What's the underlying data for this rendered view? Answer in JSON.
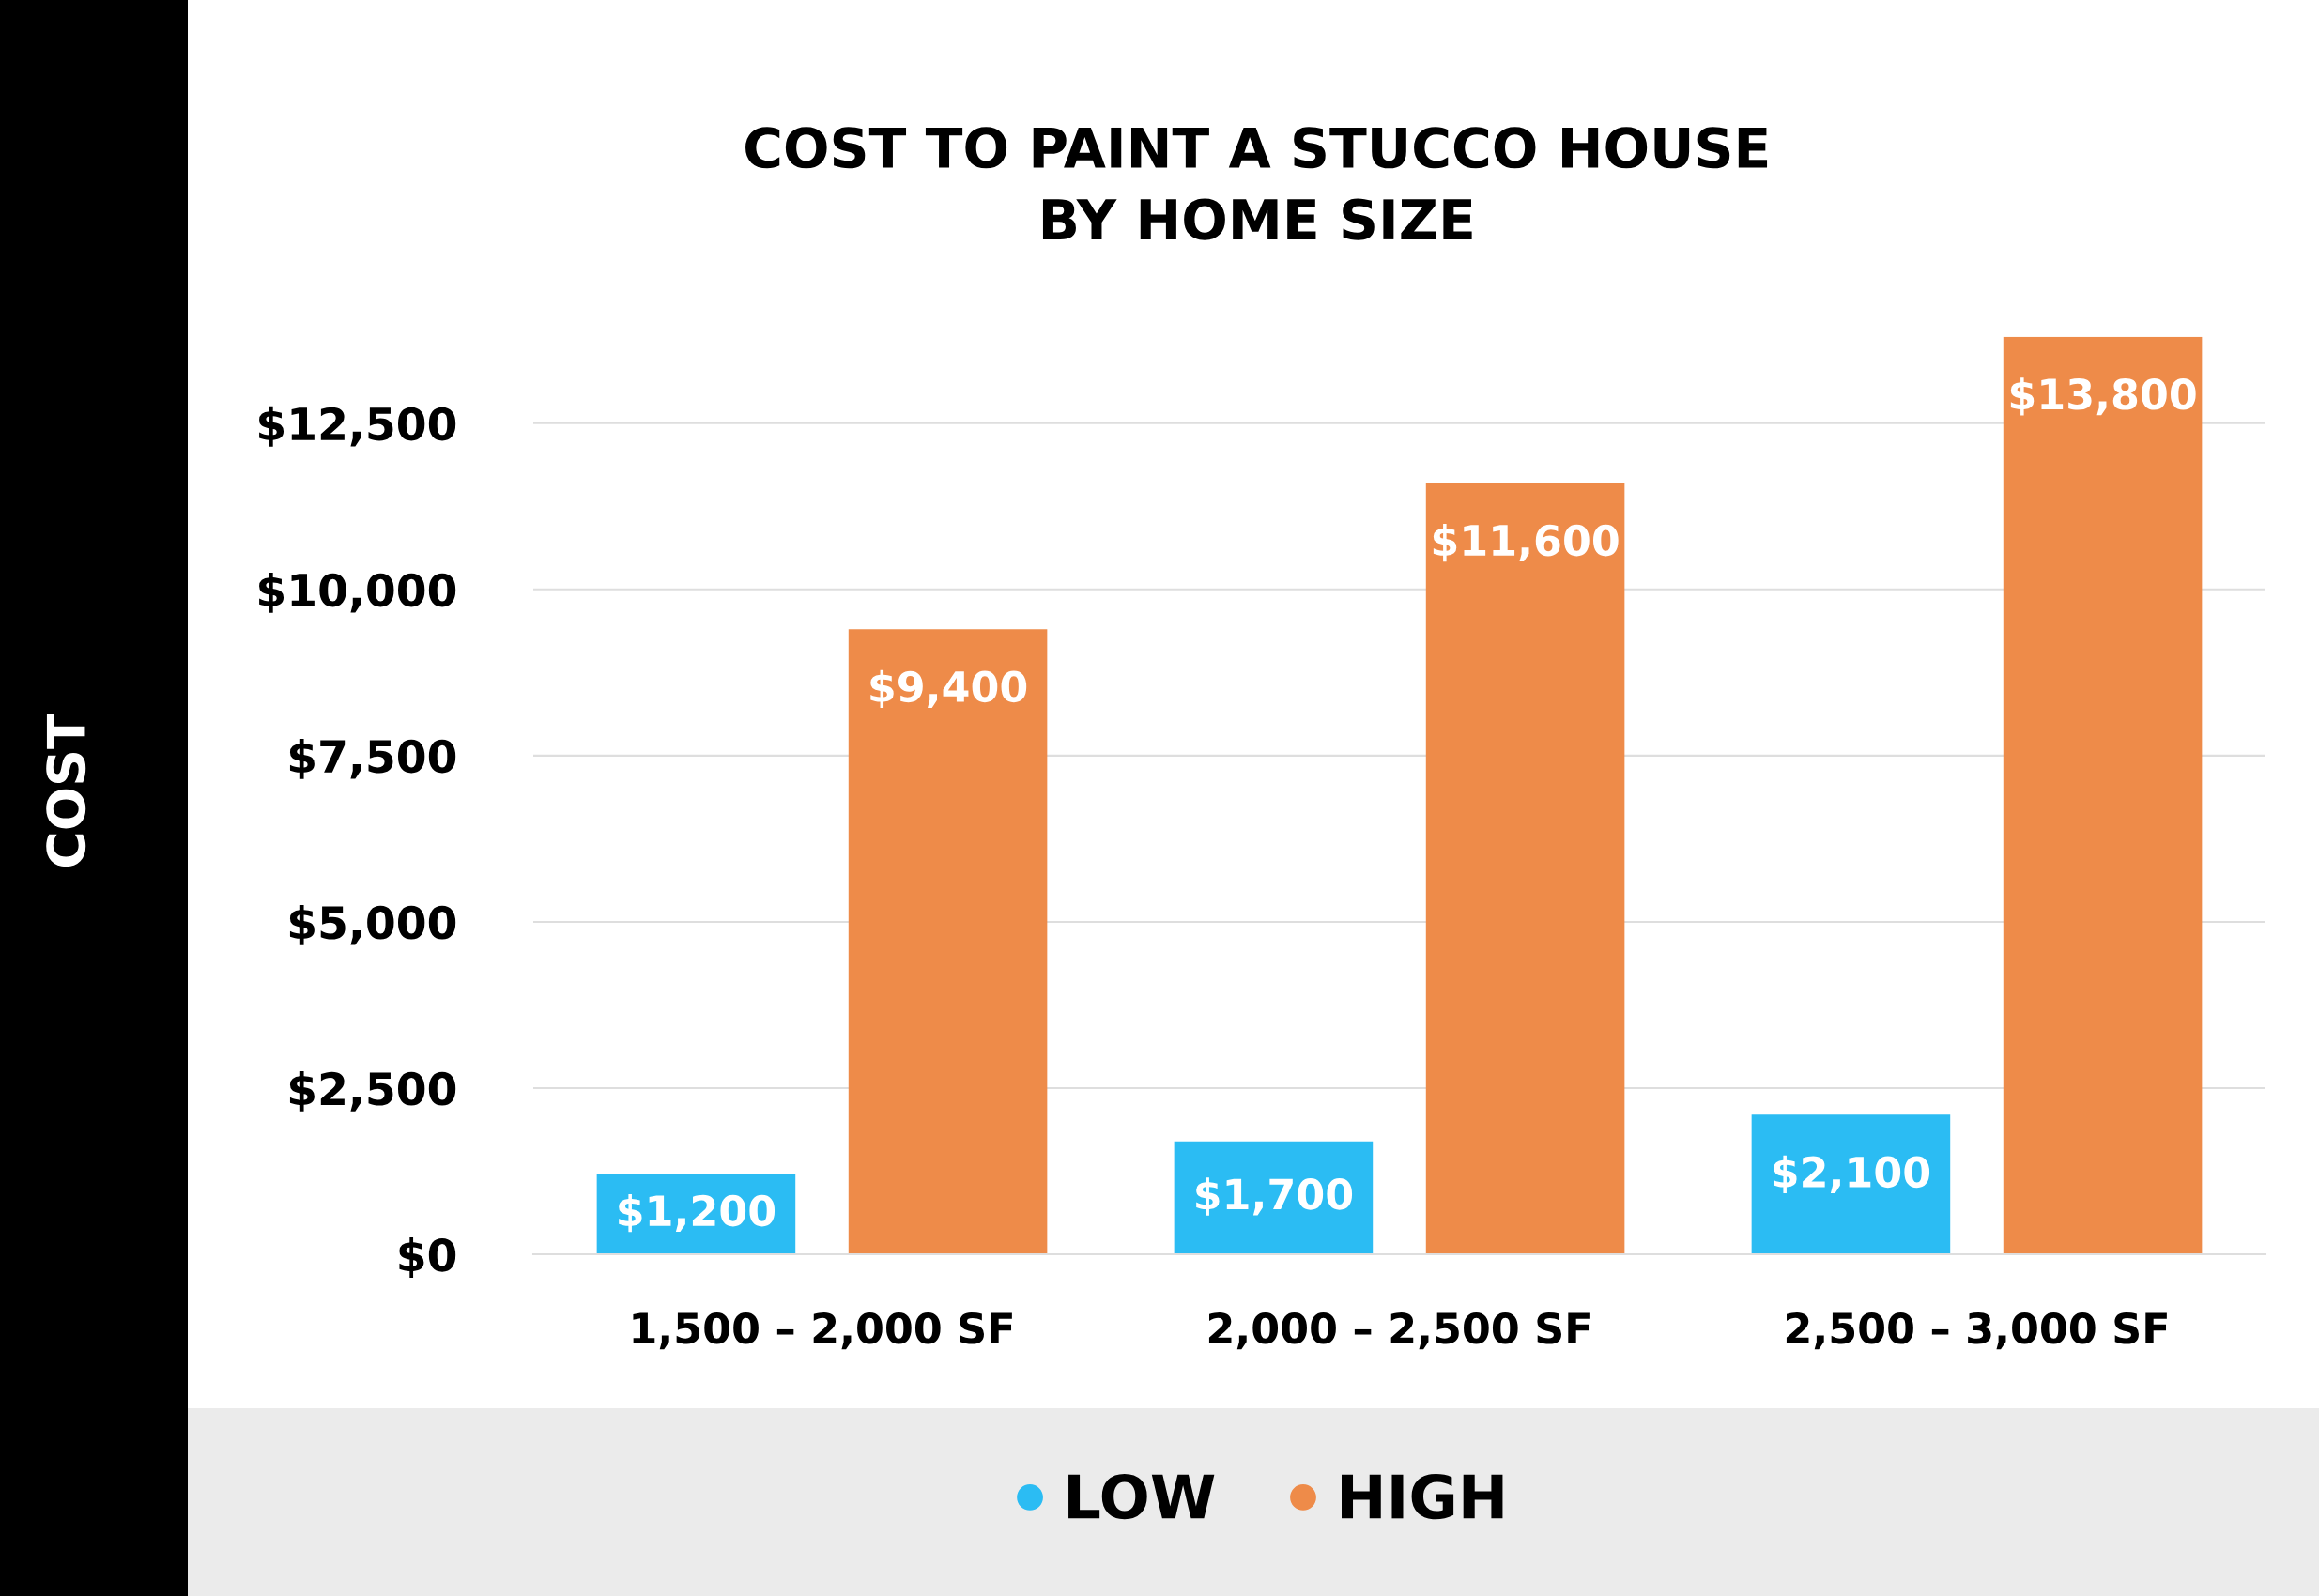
{
  "chart_data": {
    "type": "bar",
    "title": "COST TO PAINT A STUCCO HOUSE\nBY HOME SIZE",
    "ylabel": "COST",
    "categories": [
      "1,500 – 2,000 SF",
      "2,000 – 2,500 SF",
      "2,500 – 3,000 SF"
    ],
    "series": [
      {
        "name": "LOW",
        "color": "#2bbcf3",
        "values": [
          1200,
          1700,
          2100
        ],
        "value_labels": [
          "$1,200",
          "$1,700",
          "$2,100"
        ]
      },
      {
        "name": "HIGH",
        "color": "#ee8b49",
        "values": [
          9400,
          11600,
          13800
        ],
        "value_labels": [
          "$9,400",
          "$11,600",
          "$13,800"
        ]
      }
    ],
    "ylim": [
      0,
      13800
    ],
    "yticks": [
      {
        "value": 0,
        "label": "$0"
      },
      {
        "value": 2500,
        "label": "$2,500"
      },
      {
        "value": 5000,
        "label": "$5,000"
      },
      {
        "value": 7500,
        "label": "$7,500"
      },
      {
        "value": 10000,
        "label": "$10,000"
      },
      {
        "value": 12500,
        "label": "$12,500"
      }
    ],
    "grid": "y",
    "legend": "bottom"
  }
}
